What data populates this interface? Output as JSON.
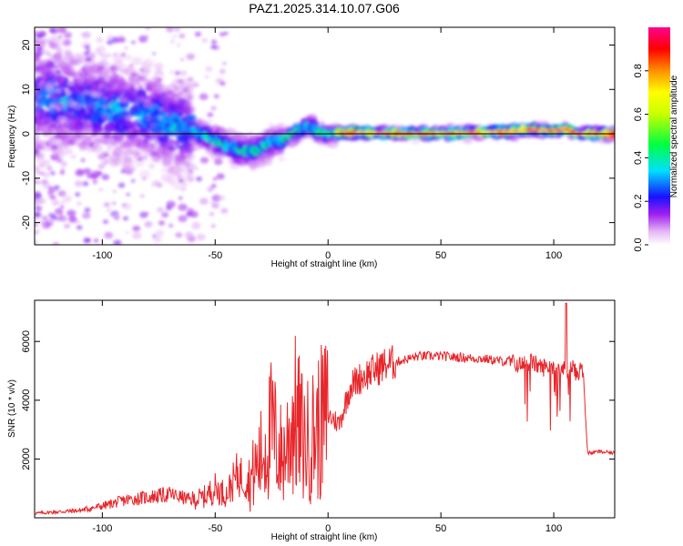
{
  "title": "PAZ1.2025.314.10.07.G06",
  "colors": {
    "axis": "#000000",
    "snr_line": "#e8262b",
    "fit_line": "#000000",
    "background": "#ffffff"
  },
  "chart_data": [
    {
      "type": "heatmap",
      "name": "spectrogram",
      "xlabel": "Height of straight line (km)",
      "ylabel": "Frequency (Hz)",
      "xlim": [
        -130,
        127
      ],
      "ylim": [
        -25,
        24
      ],
      "xticks": [
        -100,
        -50,
        0,
        50,
        100
      ],
      "xtick_labels": [
        "-100",
        "-50",
        "0",
        "50",
        "100"
      ],
      "yticks": [
        -20,
        -10,
        0,
        10,
        20
      ],
      "ytick_labels": [
        "-20",
        "-10",
        "0",
        "10",
        "20"
      ],
      "ridge": {
        "x": [
          -130,
          -120,
          -110,
          -100,
          -90,
          -80,
          -70,
          -60,
          -50,
          -45,
          -40,
          -35,
          -30,
          -25,
          -20,
          -15,
          -10,
          -8,
          -5,
          0,
          10,
          20,
          40,
          60,
          80,
          90,
          100,
          105,
          110,
          127
        ],
        "y": [
          8,
          8,
          7,
          6,
          5,
          4,
          2.5,
          1,
          -1.5,
          -2.5,
          -3.5,
          -4,
          -3.5,
          -2,
          -1.5,
          0,
          1.5,
          2,
          0.5,
          0,
          0.3,
          0.2,
          0,
          0.2,
          0.5,
          1,
          0.6,
          1.2,
          0,
          0
        ]
      },
      "fit_line": {
        "x": [
          -130,
          127
        ],
        "y": [
          0,
          0
        ]
      },
      "colorbar": {
        "label": "Normalized spectral amplitude",
        "ticks": [
          0.0,
          0.2,
          0.4,
          0.6,
          0.8
        ],
        "tick_labels": [
          "0.0",
          "0.2",
          "0.4",
          "0.6",
          "0.8"
        ],
        "range": [
          0,
          1
        ]
      }
    },
    {
      "type": "line",
      "name": "snr",
      "xlabel": "Height of straight line (km)",
      "ylabel": "SNR (10 * v/v)",
      "xlim": [
        -130,
        127
      ],
      "ylim": [
        0,
        7400
      ],
      "xticks": [
        -100,
        -50,
        0,
        50,
        100
      ],
      "xtick_labels": [
        "-100",
        "-50",
        "0",
        "50",
        "100"
      ],
      "yticks": [
        2000,
        4000,
        6000
      ],
      "ytick_labels": [
        "2000",
        "4000",
        "6000"
      ],
      "series": [
        {
          "name": "SNR",
          "x": [
            -130,
            -120,
            -110,
            -100,
            -90,
            -80,
            -70,
            -60,
            -55,
            -50,
            -45,
            -40,
            -35,
            -30,
            -25,
            -20,
            -15,
            -10,
            -5,
            0,
            5,
            10,
            15,
            20,
            25,
            30,
            40,
            50,
            60,
            70,
            80,
            85,
            90,
            95,
            100,
            103,
            106,
            108,
            110,
            112,
            113,
            115,
            120,
            127
          ],
          "y": [
            150,
            200,
            250,
            400,
            600,
            700,
            800,
            600,
            700,
            1000,
            800,
            1500,
            1200,
            2000,
            3000,
            2000,
            3500,
            2500,
            3000,
            3500,
            3200,
            4500,
            4800,
            5000,
            5200,
            5300,
            5500,
            5500,
            5450,
            5400,
            5300,
            5200,
            5300,
            5100,
            5200,
            5100,
            5000,
            5150,
            4900,
            5050,
            5000,
            2200,
            2250,
            2200
          ]
        }
      ]
    }
  ]
}
